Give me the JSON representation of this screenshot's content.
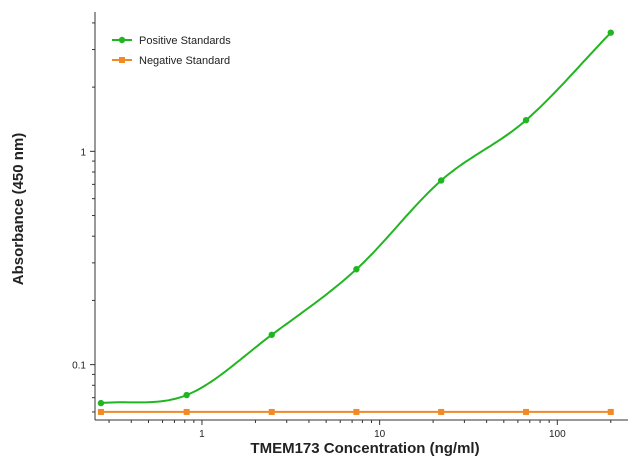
{
  "chart_data": {
    "type": "scatter",
    "title": "",
    "xlabel": "TMEM173 Concentration (ng/ml)",
    "ylabel": "Absorbance (450 nm)",
    "x_scale": "log",
    "y_scale": "log",
    "xlim": [
      0.25,
      250
    ],
    "ylim": [
      0.055,
      4.5
    ],
    "x_ticks": [
      {
        "value": 1,
        "label": "1"
      },
      {
        "value": 10,
        "label": "10"
      },
      {
        "value": 100,
        "label": "100"
      }
    ],
    "y_ticks": [
      {
        "value": 0.1,
        "label": "0.1"
      },
      {
        "value": 1,
        "label": "1"
      }
    ],
    "grid": false,
    "legend_position": "top-left",
    "series": [
      {
        "name": "Positive Standards",
        "color": "#22b522",
        "marker": "circle",
        "fit_curve": true,
        "points": [
          {
            "x": 0.27,
            "y": 0.066
          },
          {
            "x": 0.82,
            "y": 0.072
          },
          {
            "x": 2.47,
            "y": 0.138
          },
          {
            "x": 7.4,
            "y": 0.28
          },
          {
            "x": 22.2,
            "y": 0.73
          },
          {
            "x": 66.7,
            "y": 1.4
          },
          {
            "x": 200,
            "y": 3.6
          }
        ]
      },
      {
        "name": "Negative Standard",
        "color": "#f08a24",
        "marker": "square",
        "fit_curve": false,
        "points": [
          {
            "x": 0.27,
            "y": 0.06
          },
          {
            "x": 0.82,
            "y": 0.06
          },
          {
            "x": 2.47,
            "y": 0.06
          },
          {
            "x": 7.4,
            "y": 0.06
          },
          {
            "x": 22.2,
            "y": 0.06
          },
          {
            "x": 66.7,
            "y": 0.06
          },
          {
            "x": 200,
            "y": 0.06
          }
        ]
      }
    ]
  }
}
